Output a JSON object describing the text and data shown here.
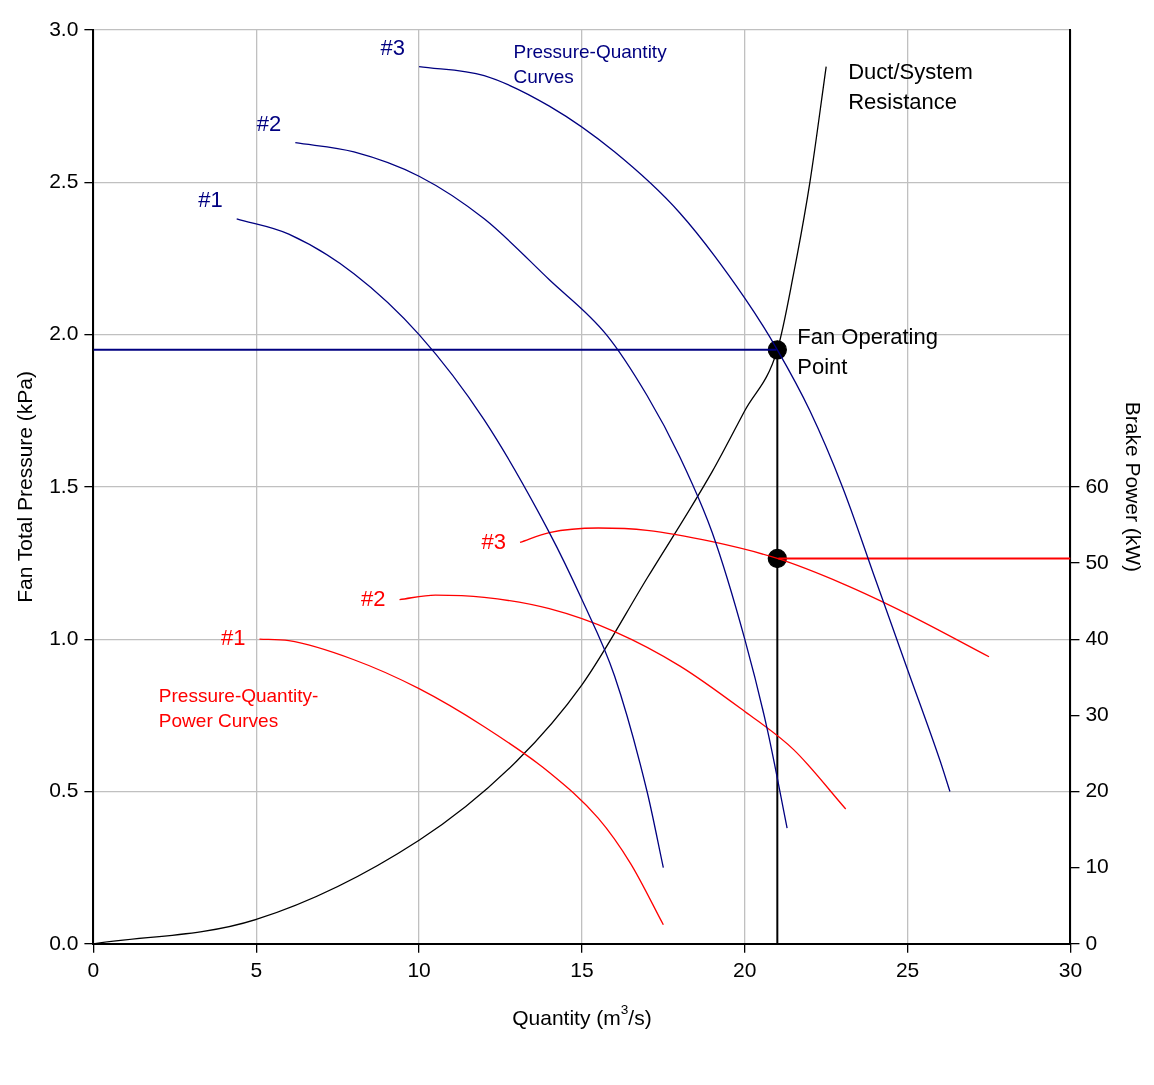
{
  "chart_data": {
    "type": "line",
    "xlabel": "Quantity (m$^{3}$/s)",
    "ylabel": "Fan Total Pressure (kPa)",
    "y2label": "Brake Power (kW)",
    "xlim": [
      0,
      30
    ],
    "xticks": [
      0,
      5,
      10,
      15,
      20,
      25,
      30
    ],
    "ylim": [
      0,
      3
    ],
    "yticks": [
      {
        "value": 0,
        "label": "0.0"
      },
      {
        "value": 0.5,
        "label": "0.5"
      },
      {
        "value": 1,
        "label": "1.0"
      },
      {
        "value": 1.5,
        "label": "1.5"
      },
      {
        "value": 2,
        "label": "2.0"
      },
      {
        "value": 2.5,
        "label": "2.5"
      },
      {
        "value": 3,
        "label": "3.0"
      }
    ],
    "y2lim": [
      0,
      120
    ],
    "y2ticks": [
      0,
      10,
      20,
      30,
      40,
      50,
      60
    ],
    "grid": true,
    "legend": false,
    "marker": "none",
    "series": [
      {
        "name": "#1",
        "color": "#000080",
        "x": [
          4.4,
          6,
          8,
          10,
          12,
          14,
          15,
          16,
          17,
          17.5
        ],
        "values": [
          2.38,
          2.33,
          2.2,
          2.0,
          1.72,
          1.35,
          1.13,
          0.88,
          0.5,
          0.25
        ]
      },
      {
        "name": "#2",
        "color": "#000080",
        "x": [
          6.2,
          8,
          10,
          12,
          14,
          15.75,
          17,
          18,
          19,
          20,
          20.7,
          21.3
        ],
        "values": [
          2.63,
          2.6,
          2.52,
          2.38,
          2.18,
          2.0,
          1.8,
          1.6,
          1.35,
          1.0,
          0.7,
          0.38
        ]
      },
      {
        "name": "#3",
        "color": "#000080",
        "x": [
          10,
          12,
          14,
          16,
          18,
          20,
          21,
          22,
          23,
          24,
          25,
          26,
          26.3
        ],
        "values": [
          2.88,
          2.85,
          2.75,
          2.6,
          2.4,
          2.12,
          1.95,
          1.75,
          1.5,
          1.2,
          0.9,
          0.6,
          0.5
        ]
      },
      {
        "name": "#1",
        "color": "#ff0000",
        "axis": "y2",
        "x": [
          5.1,
          6,
          8,
          10,
          12,
          14,
          15.5,
          16.5,
          17.5
        ],
        "values": [
          40,
          39.8,
          37.3,
          33.5,
          28.5,
          22.5,
          16.5,
          10.5,
          2.5
        ]
      },
      {
        "name": "#2",
        "color": "#ff0000",
        "axis": "y2",
        "x": [
          9.4,
          10.5,
          12,
          14,
          16,
          18,
          20,
          21.5,
          23.1
        ],
        "values": [
          45.2,
          45.8,
          45.5,
          44,
          41,
          36.5,
          30.5,
          25.5,
          17.7
        ]
      },
      {
        "name": "#3",
        "color": "#ff0000",
        "axis": "y2",
        "x": [
          13.1,
          14,
          15.5,
          17,
          19,
          21,
          23,
          25,
          27.5
        ],
        "values": [
          52.7,
          54,
          54.6,
          54.3,
          52.8,
          50.6,
          47.3,
          43.3,
          37.7
        ]
      },
      {
        "name": "Duct/System Resistance",
        "color": "#000000",
        "x": [
          0,
          5,
          10,
          13,
          15,
          17,
          19,
          20,
          21,
          21.5,
          22,
          22.5
        ],
        "values": [
          0,
          0.08,
          0.34,
          0.6,
          0.85,
          1.2,
          1.55,
          1.75,
          1.95,
          2.2,
          2.5,
          2.88
        ]
      },
      {
        "color": "#000080",
        "x": [
          0,
          21
        ],
        "values": [
          1.95,
          1.95
        ]
      },
      {
        "color": "#000000",
        "x": [
          21,
          21
        ],
        "values": [
          0,
          1.95
        ]
      },
      {
        "color": "#ff0000",
        "axis": "y2",
        "x": [
          21,
          30
        ],
        "values": [
          50.6,
          50.6
        ]
      },
      {
        "type": "scatter",
        "name": "Fan Operating Point",
        "color": "#000000",
        "marker": "circle",
        "x": [
          21
        ],
        "values": [
          1.95
        ]
      },
      {
        "type": "scatter",
        "color": "#000000",
        "axis": "y2",
        "marker": "circle",
        "x": [
          21
        ],
        "values": [
          50.6
        ]
      }
    ],
    "annotations": [
      "Pressure-Quantity Curves",
      "Pressure-Quantity-Power Curves"
    ]
  }
}
